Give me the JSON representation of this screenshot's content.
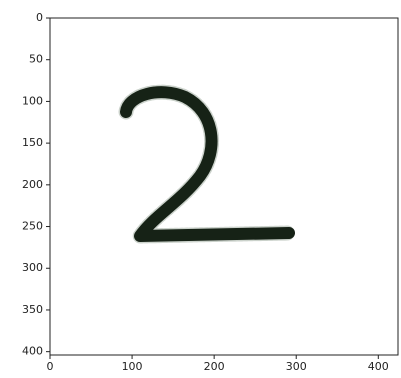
{
  "chart_data": {
    "type": "image",
    "xlim": [
      0,
      424
    ],
    "ylim": [
      404,
      0
    ],
    "xticks": [
      0,
      100,
      200,
      300,
      400
    ],
    "yticks": [
      0,
      50,
      100,
      150,
      200,
      250,
      300,
      350,
      400
    ]
  }
}
